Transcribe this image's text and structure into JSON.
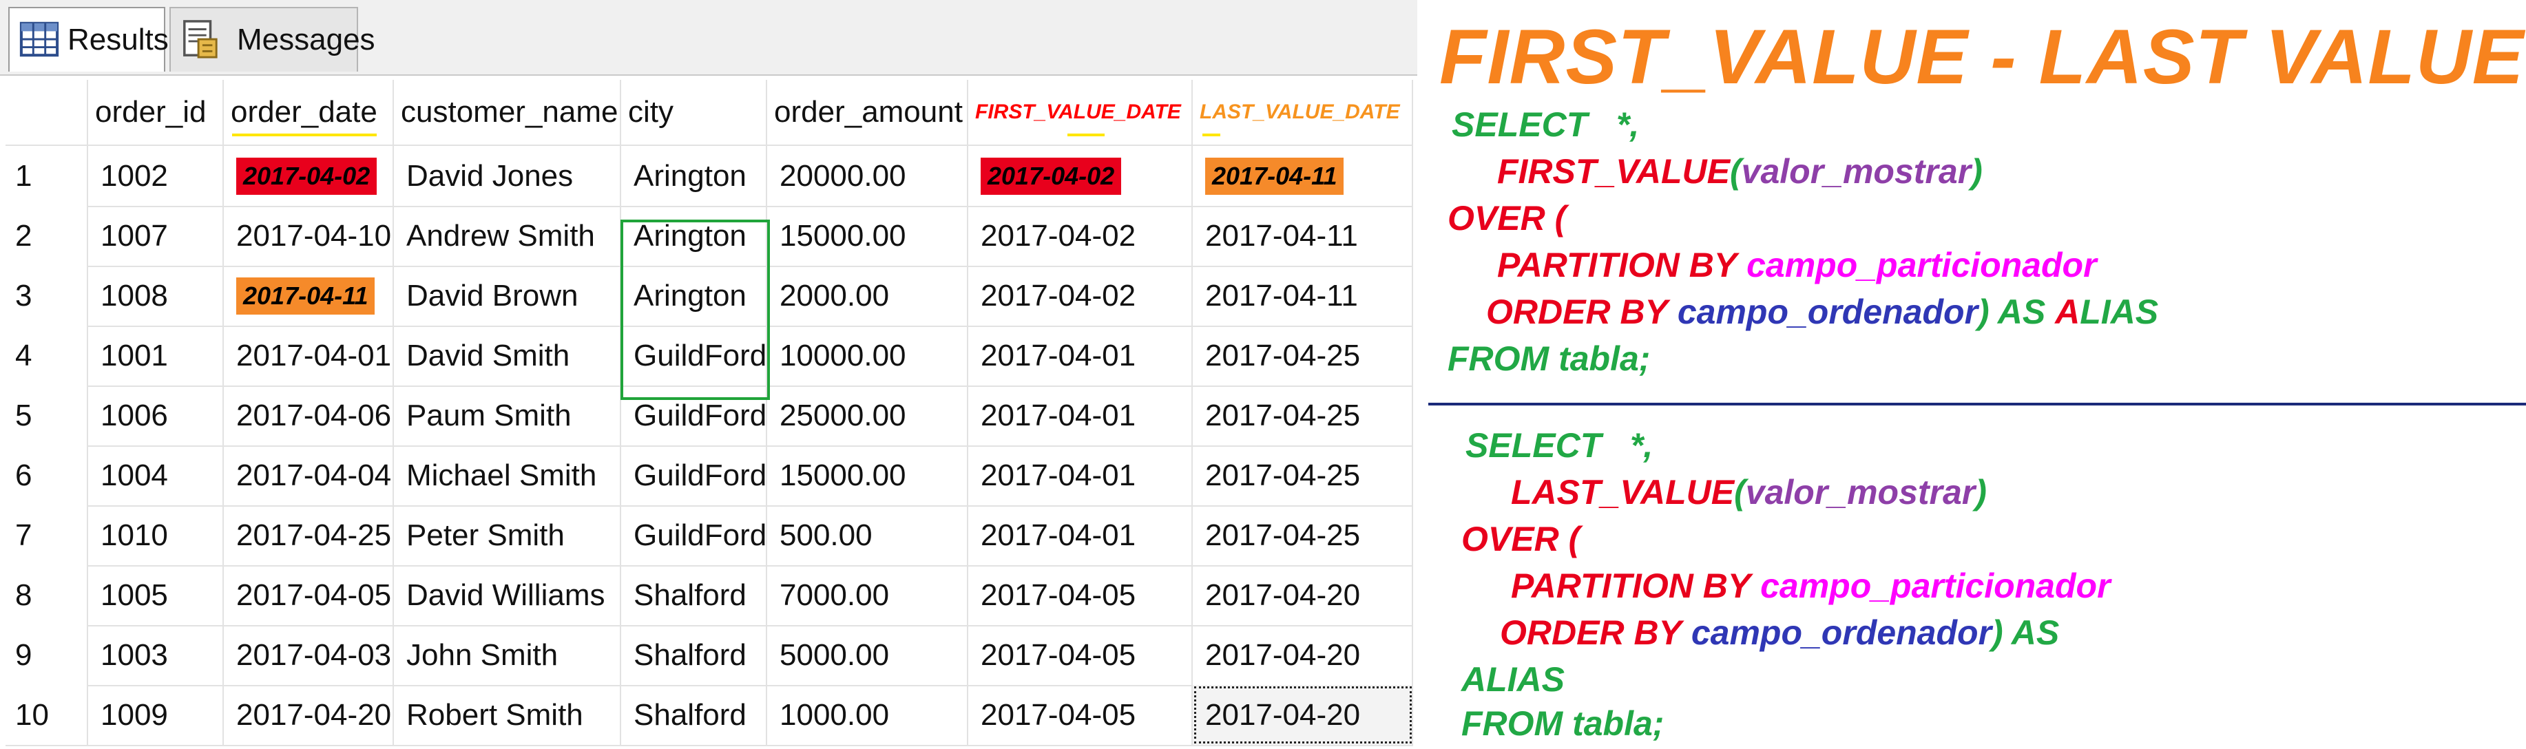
{
  "tabs": {
    "results_label": "Results",
    "messages_label": "Messages"
  },
  "grid": {
    "columns": [
      "order_id",
      "order_date",
      "customer_name",
      "city",
      "order_amount",
      "FIRST_VALUE_DATE",
      "LAST_VALUE_DATE"
    ],
    "rows": [
      {
        "num": "1",
        "order_id": "1002",
        "order_date": "2017-04-02",
        "customer_name": "David Jones",
        "city": "Arington",
        "order_amount": "20000.00",
        "first_value_date": "2017-04-02",
        "last_value_date": "2017-04-11"
      },
      {
        "num": "2",
        "order_id": "1007",
        "order_date": "2017-04-10",
        "customer_name": "Andrew Smith",
        "city": "Arington",
        "order_amount": "15000.00",
        "first_value_date": "2017-04-02",
        "last_value_date": "2017-04-11"
      },
      {
        "num": "3",
        "order_id": "1008",
        "order_date": "2017-04-11",
        "customer_name": "David Brown",
        "city": "Arington",
        "order_amount": "2000.00",
        "first_value_date": "2017-04-02",
        "last_value_date": "2017-04-11"
      },
      {
        "num": "4",
        "order_id": "1001",
        "order_date": "2017-04-01",
        "customer_name": "David Smith",
        "city": "GuildFord",
        "order_amount": "10000.00",
        "first_value_date": "2017-04-01",
        "last_value_date": "2017-04-25"
      },
      {
        "num": "5",
        "order_id": "1006",
        "order_date": "2017-04-06",
        "customer_name": "Paum Smith",
        "city": "GuildFord",
        "order_amount": "25000.00",
        "first_value_date": "2017-04-01",
        "last_value_date": "2017-04-25"
      },
      {
        "num": "6",
        "order_id": "1004",
        "order_date": "2017-04-04",
        "customer_name": "Michael Smith",
        "city": "GuildFord",
        "order_amount": "15000.00",
        "first_value_date": "2017-04-01",
        "last_value_date": "2017-04-25"
      },
      {
        "num": "7",
        "order_id": "1010",
        "order_date": "2017-04-25",
        "customer_name": "Peter Smith",
        "city": "GuildFord",
        "order_amount": "500.00",
        "first_value_date": "2017-04-01",
        "last_value_date": "2017-04-25"
      },
      {
        "num": "8",
        "order_id": "1005",
        "order_date": "2017-04-05",
        "customer_name": "David Williams",
        "city": "Shalford",
        "order_amount": "7000.00",
        "first_value_date": "2017-04-05",
        "last_value_date": "2017-04-20"
      },
      {
        "num": "9",
        "order_id": "1003",
        "order_date": "2017-04-03",
        "customer_name": "John Smith",
        "city": "Shalford",
        "order_amount": "5000.00",
        "first_value_date": "2017-04-05",
        "last_value_date": "2017-04-20"
      },
      {
        "num": "10",
        "order_id": "1009",
        "order_date": "2017-04-20",
        "customer_name": "Robert Smith",
        "city": "Shalford",
        "order_amount": "1000.00",
        "first_value_date": "2017-04-05",
        "last_value_date": "2017-04-20"
      }
    ],
    "highlight_colors": {
      "red": "#e8001c",
      "orange": "#f58a2a",
      "city_box": "#20a43a"
    }
  },
  "explanation": {
    "title": "FIRST_VALUE - LAST VALUE",
    "title_color": "#f7831e",
    "first_block": {
      "select": "SELECT",
      "star": "*,",
      "func": "FIRST_VALUE",
      "arg_open": "(",
      "arg": "valor_mostrar",
      "arg_close": ")",
      "over": "OVER (",
      "partition_kw": "PARTITION BY",
      "partition_field": "campo_particionador",
      "order_kw": "ORDER BY",
      "order_field": "campo_ordenador",
      "close_as": ") AS",
      "alias_a": "A",
      "alias_rest": "LIAS",
      "from": "FROM tabla;"
    },
    "second_block": {
      "select": "SELECT",
      "star": "*,",
      "func": "LAST_VALUE",
      "arg_open": "(",
      "arg": "valor_mostrar",
      "arg_close": ")",
      "over": "OVER (",
      "partition_kw": "PARTITION BY",
      "partition_field": "campo_particionador",
      "order_kw": "ORDER BY",
      "order_field": "campo_ordenador",
      "close_as": ") AS",
      "alias": "ALIAS",
      "from": "FROM tabla;"
    }
  }
}
